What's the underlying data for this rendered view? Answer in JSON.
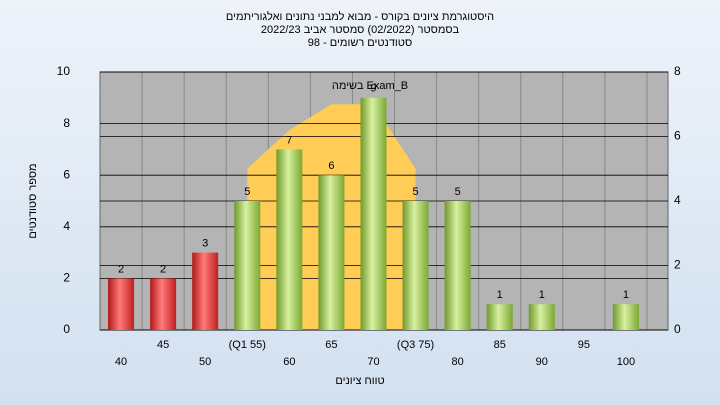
{
  "chart_data": {
    "type": "bar",
    "title": [
      "היסטוגרמת ציונים בקורס - מבוא למבני נתונים ואלגוריתמים",
      "בסמסטר  (02/2022)  סמסטר אביב 2022/23",
      "סטודנטים רשומים - 98"
    ],
    "annotation": "בשימה Exam_B",
    "x_label": "טווח ציונים",
    "y_label": "מספר סטודנטים",
    "categories": [
      "40",
      "45",
      "50",
      "(Q1 55)",
      "60",
      "65",
      "70",
      "(Q3 75)",
      "80",
      "85",
      "90",
      "95",
      "100"
    ],
    "values": [
      2,
      2,
      3,
      5,
      7,
      6,
      9,
      5,
      5,
      1,
      1,
      null,
      1
    ],
    "value_labels": [
      "2",
      "2",
      "3",
      "5",
      "7",
      "6",
      "9",
      "5",
      "5",
      "1",
      "1",
      null,
      "1"
    ],
    "colors": [
      "red",
      "red",
      "red",
      "green",
      "green",
      "green",
      "green",
      "green",
      "green",
      "green",
      "green",
      "green",
      "green"
    ],
    "area": {
      "values": [
        null,
        null,
        null,
        5,
        6.2,
        7,
        7,
        5,
        null,
        null,
        null,
        null,
        null
      ],
      "axis": "y2",
      "color": "#ffcc55"
    },
    "ylim": [
      0,
      10
    ],
    "yticks": [
      0,
      2,
      4,
      6,
      8,
      10
    ],
    "y2lim": [
      0,
      8
    ],
    "y2ticks": [
      0,
      2,
      4,
      6,
      8
    ],
    "grid": true
  }
}
